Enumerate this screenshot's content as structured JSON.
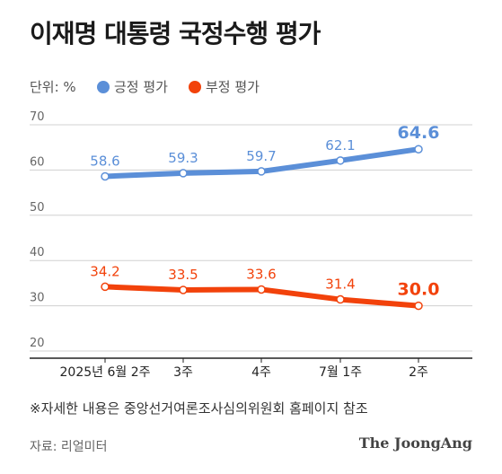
{
  "title": "이재명 대통령 국정수행 평가",
  "unit_label": "단위: %",
  "note": "※자세한 내용은 중앙선거여론조사심의위원회 홈페이지 참조",
  "source": "자료: 리얼미터",
  "brand": "The JoongAng",
  "chart_data": {
    "type": "line",
    "categories": [
      "2025년 6월 2주",
      "3주",
      "4주",
      "7월 1주",
      "2주"
    ],
    "ylim": [
      20,
      70
    ],
    "yticks": [
      20,
      30,
      40,
      50,
      60,
      70
    ],
    "grid": true,
    "legend_placement": "top",
    "series": [
      {
        "name": "긍정 평가",
        "color": "#5b8fd8",
        "values": [
          58.6,
          59.3,
          59.7,
          62.1,
          64.6
        ]
      },
      {
        "name": "부정 평가",
        "color": "#f2420b",
        "values": [
          34.2,
          33.5,
          33.6,
          31.4,
          30.0
        ]
      }
    ]
  }
}
